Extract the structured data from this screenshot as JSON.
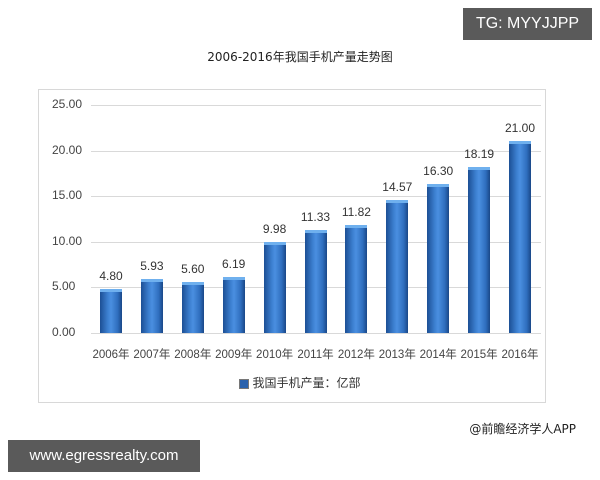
{
  "badges": {
    "top_right": "TG: MYYJJPP",
    "bottom_left": "www.egressrealty.com"
  },
  "source_credit": "@前瞻经济学人APP",
  "chart_data": {
    "type": "bar",
    "title": "2006-2016年我国手机产量走势图",
    "xlabel": "",
    "ylabel": "",
    "categories": [
      "2006年",
      "2007年",
      "2008年",
      "2009年",
      "2010年",
      "2011年",
      "2012年",
      "2013年",
      "2014年",
      "2015年",
      "2016年"
    ],
    "series": [
      {
        "name": "我国手机产量：亿部",
        "values": [
          4.8,
          5.93,
          5.6,
          6.19,
          9.98,
          11.33,
          11.82,
          14.57,
          16.3,
          18.19,
          21.0
        ],
        "labels": [
          "4.80",
          "5.93",
          "5.60",
          "6.19",
          "9.98",
          "11.33",
          "11.82",
          "14.57",
          "16.30",
          "18.19",
          "21.00"
        ],
        "color": "#2a62ad"
      }
    ],
    "ylim": [
      0,
      25
    ],
    "yticks": [
      "0.00",
      "5.00",
      "10.00",
      "15.00",
      "20.00",
      "25.00"
    ],
    "grid": true,
    "legend_position": "bottom"
  }
}
